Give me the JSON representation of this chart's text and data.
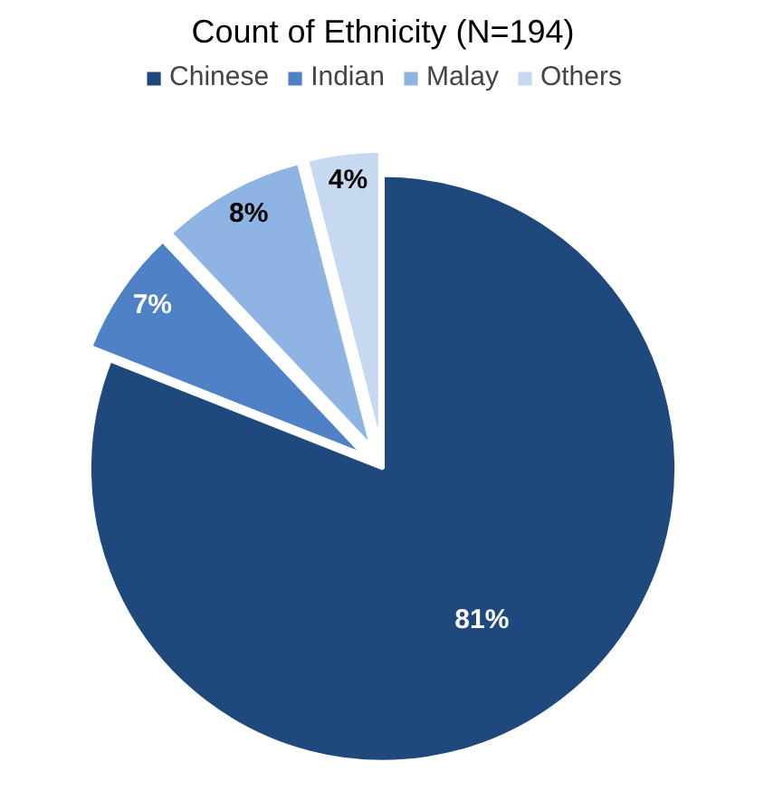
{
  "chart_data": {
    "type": "pie",
    "title": "Count of Ethnicity (N=194)",
    "categories": [
      "Chinese",
      "Indian",
      "Malay",
      "Others"
    ],
    "values": [
      81,
      7,
      8,
      4
    ],
    "colors": [
      "#1f497d",
      "#4f81c7",
      "#8eb4e3",
      "#c6d9f1"
    ],
    "value_labels": [
      "81%",
      "7%",
      "8%",
      "4%"
    ],
    "legend": "top"
  }
}
